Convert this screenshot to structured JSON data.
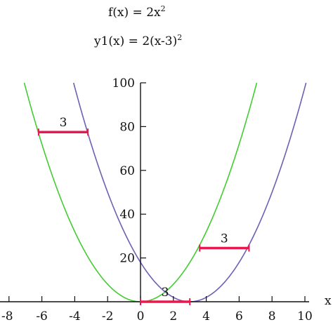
{
  "equations": [
    {
      "base": "f(x) = 2x",
      "exponent": "2"
    },
    {
      "base": "y1(x) = 2(x-3)",
      "exponent": "2"
    }
  ],
  "colors": {
    "f": "#44cc33",
    "y1": "#6b62b4",
    "shift": "#e8194f",
    "axis": "#111111"
  },
  "chart_data": {
    "type": "line",
    "title": "",
    "xlabel": "x",
    "ylabel": "",
    "xlim": [
      -8,
      10
    ],
    "ylim": [
      0,
      100
    ],
    "x_ticks": [
      -8,
      -6,
      -4,
      -2,
      0,
      2,
      4,
      6,
      8,
      10
    ],
    "x_tick_labels": [
      "-8",
      "-6",
      "-4",
      "-2",
      "0",
      "2",
      "4",
      "6",
      "8",
      "10"
    ],
    "y_ticks": [
      20,
      40,
      60,
      80,
      100
    ],
    "y_tick_labels": [
      "20",
      "40",
      "60",
      "80",
      "100"
    ],
    "series": [
      {
        "key": "f",
        "expression": "2*x^2",
        "x_range": [
          -7.07,
          7.07
        ],
        "color": "#44cc33"
      },
      {
        "key": "y1",
        "expression": "2*(x-3)^2",
        "x_range": [
          -4.07,
          10.07
        ],
        "color": "#6b62b4"
      }
    ],
    "annotations": [
      {
        "type": "shift",
        "label": "3",
        "y": 77.5,
        "x_start": -6.2,
        "x_end": -3.2
      },
      {
        "type": "shift",
        "label": "3",
        "y": 24.5,
        "x_start": 3.6,
        "x_end": 6.6
      },
      {
        "type": "shift",
        "label": "3",
        "y": 0,
        "x_start": 0,
        "x_end": 3
      }
    ]
  }
}
